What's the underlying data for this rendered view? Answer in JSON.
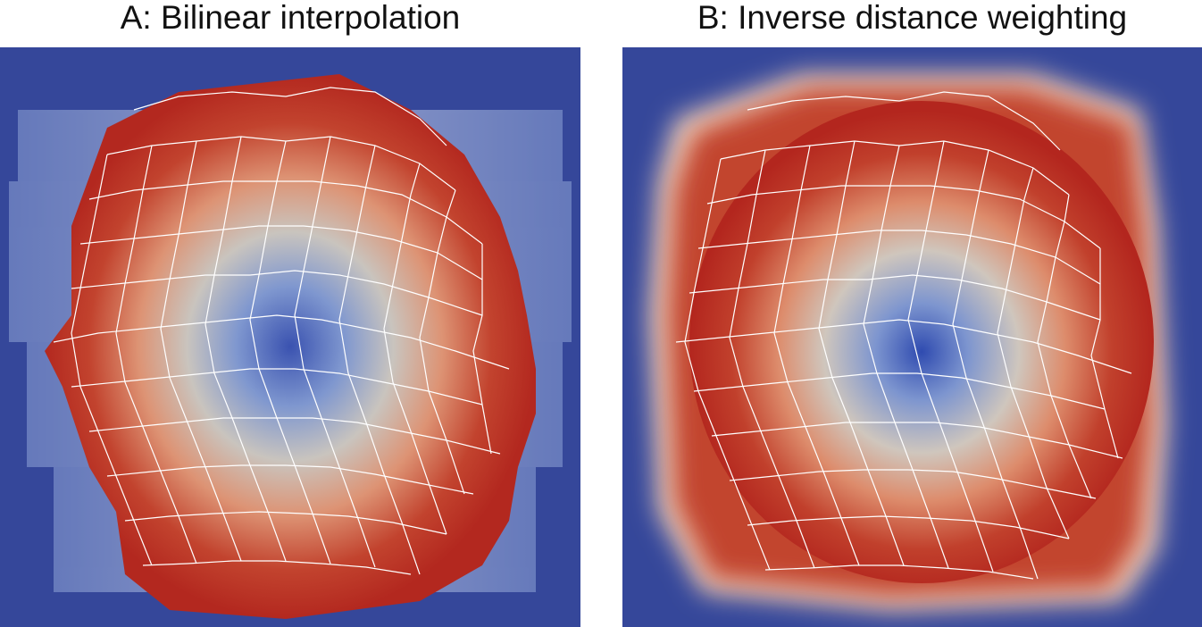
{
  "panels": [
    {
      "label": "A: Bilinear interpolation"
    },
    {
      "label": "B: Inverse distance weighting"
    }
  ],
  "colors": {
    "background_low": "#35479a",
    "mid": "#c9c3bd",
    "high": "#b82a22",
    "cell_edges": "#ffffff"
  }
}
